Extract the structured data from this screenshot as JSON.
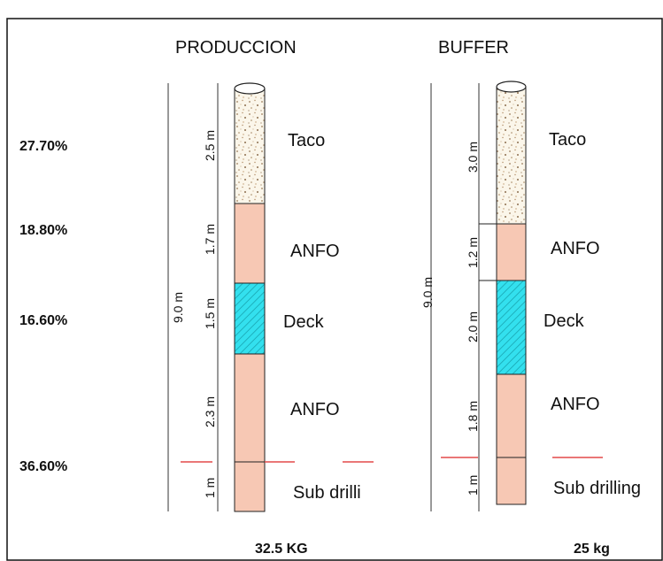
{
  "percentages": [
    "27.70%",
    "18.80%",
    "16.60%",
    "36.60%"
  ],
  "columns": [
    {
      "title": "PRODUCCION",
      "total_length": "9.0 m",
      "charge": "32.5 KG",
      "sections": [
        {
          "label": "Taco",
          "length": "2.5 m",
          "material": "stemming"
        },
        {
          "label": "ANFO",
          "length": "1.7 m",
          "material": "anfo"
        },
        {
          "label": "Deck",
          "length": "1.5 m",
          "material": "deck"
        },
        {
          "label": "ANFO",
          "length": "2.3 m",
          "material": "anfo"
        },
        {
          "label": "Sub drilli",
          "length": "1 m",
          "material": "anfo"
        }
      ]
    },
    {
      "title": "BUFFER",
      "total_length": "9.0 m",
      "charge": "25 kg",
      "sections": [
        {
          "label": "Taco",
          "length": "3.0 m",
          "material": "stemming"
        },
        {
          "label": "ANFO",
          "length": "1.2 m",
          "material": "anfo"
        },
        {
          "label": "Deck",
          "length": "2.0 m",
          "material": "deck"
        },
        {
          "label": "ANFO",
          "length": "1.8 m",
          "material": "anfo"
        },
        {
          "label": "Sub drilling",
          "length": "1 m",
          "material": "anfo"
        }
      ]
    }
  ],
  "colors": {
    "anfo": "#f7c8b4",
    "deck": "#33e0ee",
    "stemming": "#fbf6ea",
    "grade_line": "#e34a4a",
    "outline": "#222222"
  }
}
